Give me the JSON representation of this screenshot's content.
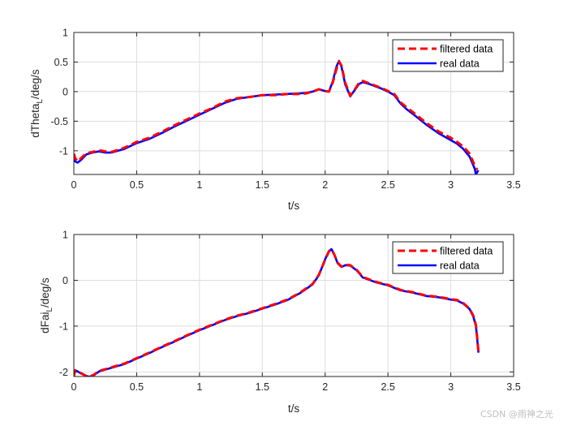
{
  "colors": {
    "filtered": "#ff0000",
    "real": "#0000ff",
    "grid": "#dedede",
    "axis": "#262626"
  },
  "watermark": "CSDN @雨神之光",
  "chart_data": [
    {
      "type": "line",
      "xlabel": "t/s",
      "ylabel_main": "dTheta",
      "ylabel_sub": "L",
      "ylabel_tail": "/deg/s",
      "xlim": [
        0,
        3.5
      ],
      "ylim": [
        -1.4,
        1
      ],
      "xticks": [
        0,
        0.5,
        1,
        1.5,
        2,
        2.5,
        3,
        3.5
      ],
      "xtick_labels": [
        "0",
        "0.5",
        "1",
        "1.5",
        "2",
        "2.5",
        "3",
        "3.5"
      ],
      "yticks": [
        1,
        0.5,
        0,
        -0.5,
        -1
      ],
      "ytick_labels": [
        "1",
        "0.5",
        "0",
        "-0.5",
        "-1"
      ],
      "grid": true,
      "legend_position": "top-right",
      "series": [
        {
          "name": "filtered data",
          "style": "dashed",
          "x": [
            0,
            0.01,
            0.03,
            0.06,
            0.1,
            0.15,
            0.2,
            0.25,
            0.3,
            0.4,
            0.5,
            0.6,
            0.7,
            0.8,
            0.9,
            1.0,
            1.1,
            1.2,
            1.3,
            1.4,
            1.5,
            1.6,
            1.7,
            1.8,
            1.85,
            1.9,
            1.95,
            2.0,
            2.03,
            2.06,
            2.09,
            2.11,
            2.13,
            2.16,
            2.2,
            2.24,
            2.27,
            2.3,
            2.35,
            2.4,
            2.45,
            2.5,
            2.55,
            2.6,
            2.65,
            2.7,
            2.8,
            2.9,
            3.0,
            3.05,
            3.1,
            3.15,
            3.19,
            3.21
          ],
          "y": [
            -1.05,
            -1.12,
            -1.18,
            -1.12,
            -1.04,
            -1.02,
            -0.99,
            -1.01,
            -1.02,
            -0.95,
            -0.85,
            -0.78,
            -0.68,
            -0.57,
            -0.47,
            -0.37,
            -0.28,
            -0.17,
            -0.11,
            -0.09,
            -0.06,
            -0.06,
            -0.04,
            -0.04,
            -0.03,
            0.0,
            0.04,
            0.01,
            0.0,
            0.15,
            0.38,
            0.51,
            0.44,
            0.15,
            -0.07,
            0.05,
            0.15,
            0.18,
            0.14,
            0.1,
            0.06,
            0.01,
            -0.04,
            -0.18,
            -0.27,
            -0.35,
            -0.52,
            -0.67,
            -0.78,
            -0.85,
            -0.93,
            -1.05,
            -1.25,
            -1.32
          ]
        },
        {
          "name": "real data",
          "style": "solid",
          "x": [
            0,
            0.01,
            0.03,
            0.06,
            0.1,
            0.15,
            0.2,
            0.25,
            0.3,
            0.4,
            0.5,
            0.6,
            0.7,
            0.8,
            0.9,
            1.0,
            1.1,
            1.2,
            1.3,
            1.4,
            1.5,
            1.6,
            1.7,
            1.8,
            1.85,
            1.9,
            1.95,
            2.0,
            2.03,
            2.06,
            2.09,
            2.11,
            2.13,
            2.16,
            2.2,
            2.24,
            2.27,
            2.3,
            2.35,
            2.4,
            2.45,
            2.5,
            2.55,
            2.6,
            2.65,
            2.7,
            2.8,
            2.9,
            3.0,
            3.05,
            3.1,
            3.15,
            3.19,
            3.2,
            3.21,
            3.22
          ],
          "y": [
            -1.15,
            -1.18,
            -1.2,
            -1.15,
            -1.06,
            -1.03,
            -1.01,
            -1.03,
            -1.03,
            -0.97,
            -0.87,
            -0.8,
            -0.7,
            -0.59,
            -0.49,
            -0.39,
            -0.29,
            -0.19,
            -0.12,
            -0.09,
            -0.06,
            -0.05,
            -0.04,
            -0.03,
            -0.02,
            0.0,
            0.04,
            0.01,
            0.0,
            0.17,
            0.42,
            0.52,
            0.42,
            0.12,
            -0.08,
            0.04,
            0.13,
            0.16,
            0.13,
            0.09,
            0.05,
            0.0,
            -0.06,
            -0.2,
            -0.3,
            -0.38,
            -0.55,
            -0.7,
            -0.82,
            -0.88,
            -0.97,
            -1.1,
            -1.3,
            -1.4,
            -1.36,
            -1.33
          ]
        }
      ]
    },
    {
      "type": "line",
      "xlabel": "t/s",
      "ylabel_main": "dFai",
      "ylabel_sub": "L",
      "ylabel_tail": "/deg/s",
      "xlim": [
        0,
        3.5
      ],
      "ylim": [
        -2.1,
        1
      ],
      "xticks": [
        0,
        0.5,
        1,
        1.5,
        2,
        2.5,
        3,
        3.5
      ],
      "xtick_labels": [
        "0",
        "0.5",
        "1",
        "1.5",
        "2",
        "2.5",
        "3",
        "3.5"
      ],
      "yticks": [
        1,
        0,
        -1,
        -2
      ],
      "ytick_labels": [
        "1",
        "0",
        "-1",
        "-2"
      ],
      "grid": true,
      "legend_position": "top-right",
      "series": [
        {
          "name": "filtered data",
          "style": "dashed",
          "x": [
            0,
            0.01,
            0.03,
            0.06,
            0.1,
            0.13,
            0.16,
            0.2,
            0.3,
            0.4,
            0.5,
            0.6,
            0.7,
            0.8,
            0.9,
            1.0,
            1.1,
            1.2,
            1.3,
            1.4,
            1.5,
            1.6,
            1.7,
            1.8,
            1.9,
            1.95,
            2.0,
            2.03,
            2.05,
            2.07,
            2.1,
            2.13,
            2.16,
            2.2,
            2.25,
            2.3,
            2.4,
            2.5,
            2.6,
            2.7,
            2.8,
            2.9,
            3.0,
            3.05,
            3.1,
            3.15,
            3.18,
            3.2,
            3.21,
            3.22
          ],
          "y": [
            -2.1,
            -1.97,
            -1.99,
            -2.03,
            -2.09,
            -2.1,
            -2.06,
            -1.98,
            -1.9,
            -1.82,
            -1.7,
            -1.58,
            -1.45,
            -1.33,
            -1.2,
            -1.08,
            -0.97,
            -0.86,
            -0.77,
            -0.7,
            -0.61,
            -0.52,
            -0.42,
            -0.27,
            -0.08,
            0.12,
            0.45,
            0.63,
            0.67,
            0.58,
            0.38,
            0.3,
            0.34,
            0.33,
            0.23,
            0.07,
            -0.03,
            -0.1,
            -0.21,
            -0.26,
            -0.33,
            -0.36,
            -0.41,
            -0.43,
            -0.5,
            -0.62,
            -0.78,
            -0.98,
            -1.25,
            -1.55
          ]
        },
        {
          "name": "real data",
          "style": "solid",
          "x": [
            0,
            0.01,
            0.03,
            0.06,
            0.1,
            0.13,
            0.16,
            0.2,
            0.3,
            0.4,
            0.5,
            0.6,
            0.7,
            0.8,
            0.9,
            1.0,
            1.1,
            1.2,
            1.3,
            1.4,
            1.5,
            1.6,
            1.7,
            1.8,
            1.9,
            1.95,
            2.0,
            2.03,
            2.05,
            2.07,
            2.1,
            2.13,
            2.16,
            2.2,
            2.25,
            2.3,
            2.4,
            2.5,
            2.6,
            2.7,
            2.8,
            2.9,
            3.0,
            3.05,
            3.1,
            3.15,
            3.18,
            3.2,
            3.21,
            3.22
          ],
          "y": [
            -1.98,
            -1.96,
            -1.99,
            -2.04,
            -2.09,
            -2.11,
            -2.07,
            -1.99,
            -1.91,
            -1.83,
            -1.71,
            -1.59,
            -1.46,
            -1.34,
            -1.21,
            -1.09,
            -0.98,
            -0.87,
            -0.78,
            -0.71,
            -0.62,
            -0.53,
            -0.43,
            -0.28,
            -0.09,
            0.11,
            0.46,
            0.64,
            0.68,
            0.58,
            0.37,
            0.29,
            0.33,
            0.32,
            0.22,
            0.06,
            -0.04,
            -0.11,
            -0.22,
            -0.27,
            -0.34,
            -0.37,
            -0.42,
            -0.44,
            -0.51,
            -0.63,
            -0.8,
            -1.0,
            -1.28,
            -1.58
          ]
        }
      ]
    }
  ]
}
